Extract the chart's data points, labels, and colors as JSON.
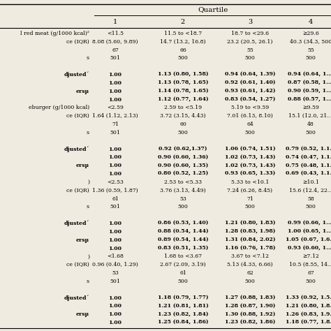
{
  "title": "Quartile",
  "col_headers": [
    "1",
    "2",
    "3",
    "4"
  ],
  "background": "#f0ebe0",
  "rows": [
    {
      "label": "l red meat (g/1000 kcal)²",
      "c1": "<11.5",
      "c2": "11.5 to <18.7",
      "c3": "18.7 to <29.6",
      "c4": "≥29.6",
      "bold": false
    },
    {
      "label": "ce (IQR)",
      "c1": "8.08 (5.60, 9.89)",
      "c2": "14.7 (13.2, 16.8)",
      "c3": "23.2 (20.5, 26.1)",
      "c4": "40.3 (34.3, 500",
      "bold": false
    },
    {
      "label": "",
      "c1": "67",
      "c2": "66",
      "c3": "55",
      "c4": "55",
      "bold": false
    },
    {
      "label": "s",
      "c1": "501",
      "c2": "500",
      "c3": "500",
      "c4": "500",
      "bold": false
    },
    {
      "label": "",
      "c1": "",
      "c2": "",
      "c3": "",
      "c4": "",
      "bold": false
    },
    {
      "label": "djusted´",
      "c1": "1.00",
      "c2": "1.13 (0.80, 1.58)",
      "c3": "0.94 (0.64, 1.39)",
      "c4": "0.94 (0.64, 1.…",
      "bold": true
    },
    {
      "label": "",
      "c1": "1.00",
      "c2": "1.13 (0.78, 1.65)",
      "c3": "0.92 (0.61, 1.40)",
      "c4": "0.87 (0.58, 1.…",
      "bold": true
    },
    {
      "label": "ersµ",
      "c1": "1.00",
      "c2": "1.14 (0.78, 1.65)",
      "c3": "0.93 (0.61, 1.42)",
      "c4": "0.90 (0.59, 1.…",
      "bold": true
    },
    {
      "label": "",
      "c1": "1.00",
      "c2": "1.12 (0.77, 1.64)",
      "c3": "0.83 (0.54, 1.27)",
      "c4": "0.88 (0.57, 1.…",
      "bold": true
    },
    {
      "label": "eburger (g/1000 kcal)",
      "c1": "<2.59",
      "c2": "2.59 to <5.19",
      "c3": "5.19 to <9.59",
      "c4": "≥9.59",
      "bold": false
    },
    {
      "label": "ce (IQR)",
      "c1": "1.64 (1.12, 2.13)",
      "c2": "3.72 (3.15, 4.43)",
      "c3": "7.01 (6.13, 8.10)",
      "c4": "15.1 (12.0, 21…",
      "bold": false
    },
    {
      "label": "",
      "c1": "71",
      "c2": "60",
      "c3": "64",
      "c4": "48",
      "bold": false
    },
    {
      "label": "s",
      "c1": "501",
      "c2": "500",
      "c3": "500",
      "c4": "500",
      "bold": false
    },
    {
      "label": "",
      "c1": "",
      "c2": "",
      "c3": "",
      "c4": "",
      "bold": false
    },
    {
      "label": "djusted´",
      "c1": "1.00",
      "c2": "0.92 (0.62,1.37)",
      "c3": "1.06 (0.74, 1.51)",
      "c4": "0.79 (0.52, 1.1…",
      "bold": true
    },
    {
      "label": "",
      "c1": "1.00",
      "c2": "0.90 (0.60, 1.36)",
      "c3": "1.02 (0.73, 1.43)",
      "c4": "0.74 (0.47, 1.1…",
      "bold": true
    },
    {
      "label": "ersµ",
      "c1": "1.00",
      "c2": "0.90 (0.60, 1.35)",
      "c3": "1.02 (0.73, 1.43)",
      "c4": "0.75 (0.48, 1.1…",
      "bold": true
    },
    {
      "label": "",
      "c1": "1.00",
      "c2": "0.80 (0.52, 1.25)",
      "c3": "0.93 (0.65, 1.33)",
      "c4": "0.69 (0.43, 1.1…",
      "bold": true
    },
    {
      "label": ")",
      "c1": "<2.53",
      "c2": "2.53 to <5.33",
      "c3": "5.33 to <10.1",
      "c4": "≥10.1",
      "bold": false
    },
    {
      "label": "ce (IQR)",
      "c1": "1.36 (0.59, 1.87)",
      "c2": "3.76 (3.13, 4.49)",
      "c3": "7.24 (6.26, 8.45)",
      "c4": "15.6 (12.4, 22…",
      "bold": false
    },
    {
      "label": "",
      "c1": "61",
      "c2": "53",
      "c3": "71",
      "c4": "58",
      "bold": false
    },
    {
      "label": "s",
      "c1": "501",
      "c2": "500",
      "c3": "500",
      "c4": "500",
      "bold": false
    },
    {
      "label": "",
      "c1": "",
      "c2": "",
      "c3": "",
      "c4": "",
      "bold": false
    },
    {
      "label": "djusted´",
      "c1": "1.00",
      "c2": "0.86 (0.53, 1.40)",
      "c3": "1.21 (0.80, 1.83)",
      "c4": "0.99 (0.66, 1.…",
      "bold": true
    },
    {
      "label": "",
      "c1": "1.00",
      "c2": "0.88 (0.54, 1.44)",
      "c3": "1.28 (0.83, 1.98)",
      "c4": "1.00 (0.65, 1.…",
      "bold": true
    },
    {
      "label": "ersµ",
      "c1": "1.00",
      "c2": "0.89 (0.54, 1.44)",
      "c3": "1.31 (0.84, 2.02)",
      "c4": "1.05 (0.67, 1.6…",
      "bold": true
    },
    {
      "label": "",
      "c1": "1.00",
      "c2": "0.83 (0.51, 1.35)",
      "c3": "1.16 (0.76, 1.78)",
      "c4": "0.93 (0.60, 1.…",
      "bold": true
    },
    {
      "label": ")",
      "c1": "<1.68",
      "c2": "1.68 to <3.67",
      "c3": "3.67 to <7.12",
      "c4": "≥7.12",
      "bold": false
    },
    {
      "label": "ce (IQR)",
      "c1": "0.96 (0.40, 1.29)",
      "c2": "2.67 (2.09, 3.19)",
      "c3": "5.13 (4.33, 6.66)",
      "c4": "10.5 (8.55, 14…",
      "bold": false
    },
    {
      "label": "",
      "c1": "53",
      "c2": "61",
      "c3": "62",
      "c4": "67",
      "bold": false
    },
    {
      "label": "s",
      "c1": "501",
      "c2": "500",
      "c3": "500",
      "c4": "500",
      "bold": false
    },
    {
      "label": "",
      "c1": "",
      "c2": "",
      "c3": "",
      "c4": "",
      "bold": false
    },
    {
      "label": "djusted´",
      "c1": "1.00",
      "c2": "1.18 (0.79, 1.77)",
      "c3": "1.27 (0.88, 1.83)",
      "c4": "1.33 (0.92, 1.5…",
      "bold": true
    },
    {
      "label": "",
      "c1": "1.00",
      "c2": "1.21 (0.81, 1.81)",
      "c3": "1.28 (0.87, 1.90)",
      "c4": "1.21 (0.80, 1.8…",
      "bold": true
    },
    {
      "label": "ersµ",
      "c1": "1.00",
      "c2": "1.23 (0.82, 1.84)",
      "c3": "1.30 (0.88, 1.92)",
      "c4": "1.26 (0.83, 1.9…",
      "bold": true
    },
    {
      "label": "",
      "c1": "1.00",
      "c2": "1.25 (0.84, 1.86)",
      "c3": "1.23 (0.82, 1.86)",
      "c4": "1.18 (0.77, 1.8…",
      "bold": true
    }
  ]
}
